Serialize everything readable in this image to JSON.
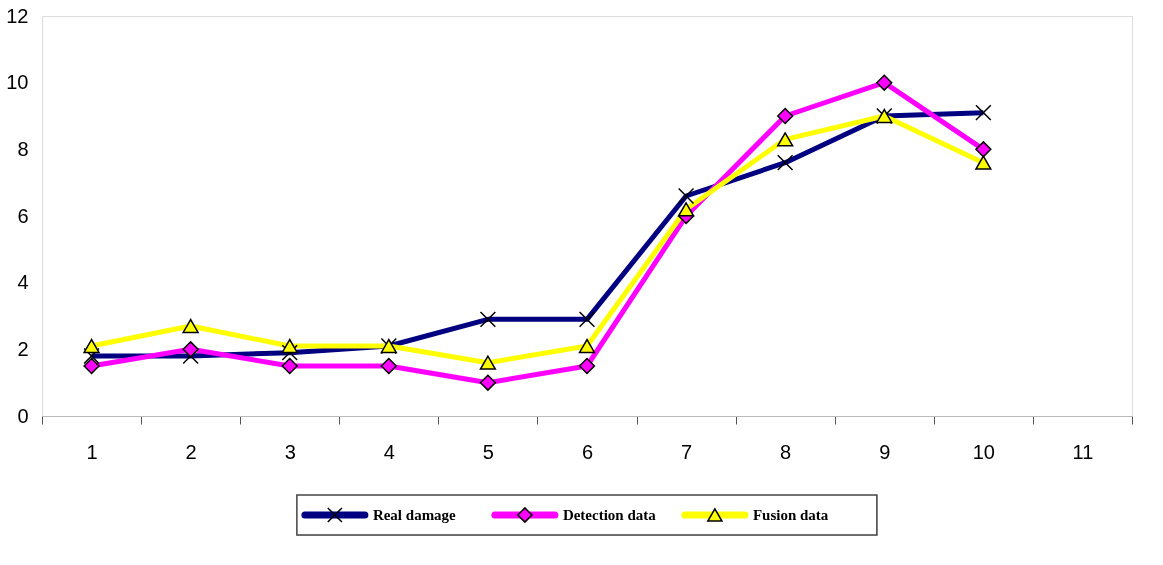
{
  "chart_data": {
    "type": "line",
    "categories": [
      "1",
      "2",
      "3",
      "4",
      "5",
      "6",
      "7",
      "8",
      "9",
      "10",
      "11"
    ],
    "ylim": [
      0,
      12
    ],
    "yticks": [
      0,
      2,
      4,
      6,
      8,
      10,
      12
    ],
    "grid": false,
    "legend": "bottom",
    "line_style": "solid",
    "series": [
      {
        "name": "Real damage",
        "color": "#000080",
        "marker": "cross",
        "values": [
          1.8,
          1.8,
          1.9,
          2.1,
          2.9,
          2.9,
          6.6,
          7.6,
          9.0,
          9.1,
          null
        ]
      },
      {
        "name": "Detection data",
        "color": "#ff00ff",
        "marker": "diamond",
        "values": [
          1.5,
          2.0,
          1.5,
          1.5,
          1.0,
          1.5,
          6.0,
          9.0,
          10.0,
          8.0,
          null
        ]
      },
      {
        "name": "Fusion data",
        "color": "#ffff00",
        "marker": "triangle",
        "values": [
          2.1,
          2.7,
          2.1,
          2.1,
          1.6,
          2.1,
          6.2,
          8.3,
          9.0,
          7.6,
          null
        ]
      }
    ]
  }
}
